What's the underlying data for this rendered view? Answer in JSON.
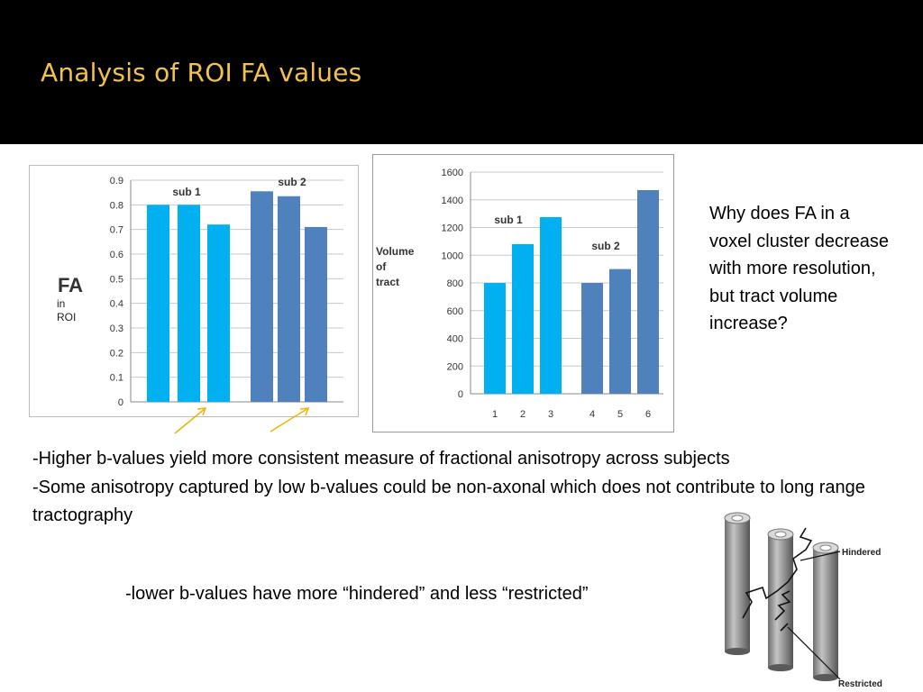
{
  "slide": {
    "title": "Analysis of ROI FA values",
    "why_text": "Why does FA in a voxel cluster decrease with more resolution, but tract volume increase?",
    "bullets": [
      "-Higher b-values yield more consistent measure of fractional anisotropy across subjects",
      "-Some anisotropy captured by low b-values could be non-axonal which does not contribute to long range tractography"
    ],
    "bottom_line": "-lower b-values have more “hindered” and less “restricted”",
    "figure_labels": {
      "hindered": "Hindered",
      "restricted": "Restricted"
    }
  },
  "colors": {
    "header_bg": "#000000",
    "title": "#f2c14e",
    "sub1_bar": "#00b0f0",
    "sub2_bar": "#4f81bd",
    "arrow": "#f0b400"
  },
  "chart_data": [
    {
      "type": "bar",
      "ylabel_main": "FA",
      "ylabel_sub": [
        "in",
        "ROI"
      ],
      "ylim": [
        0,
        0.9
      ],
      "yticks": [
        "0",
        "0.1",
        "0.2",
        "0.3",
        "0.4",
        "0.5",
        "0.6",
        "0.7",
        "0.8",
        "0.9"
      ],
      "grid": true,
      "groups": [
        {
          "name": "sub 1",
          "values": [
            0.8,
            0.8,
            0.72
          ]
        },
        {
          "name": "sub 2",
          "values": [
            0.855,
            0.835,
            0.71
          ]
        }
      ]
    },
    {
      "type": "bar",
      "ylabel": [
        "Volume",
        "of",
        "tract"
      ],
      "ylim": [
        0,
        1600
      ],
      "yticks": [
        "0",
        "200",
        "400",
        "600",
        "800",
        "1000",
        "1200",
        "1400",
        "1600"
      ],
      "grid": true,
      "categories": [
        "1",
        "2",
        "3",
        "4",
        "5",
        "6"
      ],
      "groups": [
        {
          "name": "sub 1",
          "values": [
            800,
            1080,
            1275
          ]
        },
        {
          "name": "sub 2",
          "values": [
            800,
            900,
            1470
          ]
        }
      ]
    }
  ]
}
